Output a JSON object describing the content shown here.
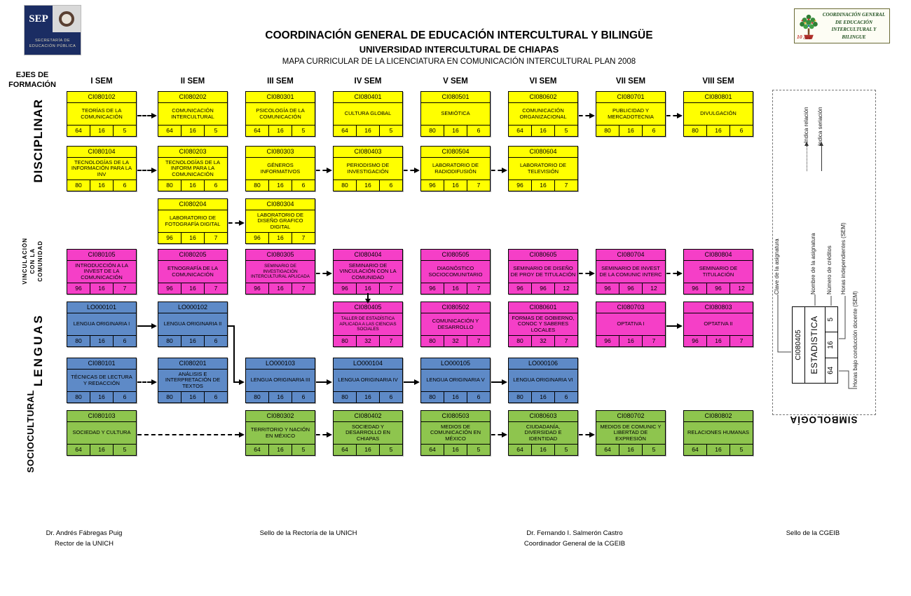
{
  "header": {
    "sep_logo": {
      "acronym": "SEP",
      "secretariat": "SECRETARÍA DE EDUCACIÓN PÚBLICA"
    },
    "title_line1": "COORDINACIÓN GENERAL DE EDUCACIÓN INTERCULTURAL Y BILINGÜE",
    "title_line2": "UNIVERSIDAD INTERCULTURAL DE CHIAPAS",
    "title_line3": "MAPA CURRICULAR DE LA LICENCIATURA EN COMUNICACIÓN INTERCULTURAL PLAN 2008",
    "cgeib_logo_text": "COORDINACIÓN GENERAL DE EDUCACIÓN INTERCULTURAL Y BILINGUE"
  },
  "rail": {
    "title_line1": "EJES DE",
    "title_line2": "FORMACIÓN",
    "disciplinar": "DISCIPLINAR",
    "vinculacion": [
      "VINCULACIÓN",
      "CON LA",
      "COMUNIDAD"
    ],
    "lenguas": "LENGUAS",
    "sociocultural": "SOCIOCULTURAL"
  },
  "semesters": [
    "I SEM",
    "II SEM",
    "III SEM",
    "IV SEM",
    "V SEM",
    "VI SEM",
    "VII SEM",
    "VIII SEM"
  ],
  "colors": {
    "disciplinar": "#FFFF00",
    "vinculacion": "#F53FC7",
    "lenguas": "#5E8AC7",
    "sociocultural": "#8EC54E"
  },
  "courses": [
    {
      "code": "CI080102",
      "name": "TEORÍAS DE LA COMUNICACIÓN",
      "h": "64",
      "hi": "16",
      "cr": "5",
      "sem": 1,
      "row": 0,
      "eje": "disciplinar"
    },
    {
      "code": "CI080202",
      "name": "COMUNICACIÓN INTERCULTURAL",
      "h": "64",
      "hi": "16",
      "cr": "5",
      "sem": 2,
      "row": 0,
      "eje": "disciplinar"
    },
    {
      "code": "CI080301",
      "name": "PSICOLOGÍA DE LA COMUNICACIÓN",
      "h": "64",
      "hi": "16",
      "cr": "5",
      "sem": 3,
      "row": 0,
      "eje": "disciplinar"
    },
    {
      "code": "CI080401",
      "name": "CULTURA GLOBAL",
      "h": "64",
      "hi": "16",
      "cr": "5",
      "sem": 4,
      "row": 0,
      "eje": "disciplinar"
    },
    {
      "code": "CI080501",
      "name": "SEMIÓTICA",
      "h": "80",
      "hi": "16",
      "cr": "6",
      "sem": 5,
      "row": 0,
      "eje": "disciplinar"
    },
    {
      "code": "CI080602",
      "name": "COMUNICACIÓN ORGANIZACIONAL",
      "h": "64",
      "hi": "16",
      "cr": "5",
      "sem": 6,
      "row": 0,
      "eje": "disciplinar"
    },
    {
      "code": "CI080701",
      "name": "PUBLICIDAD Y MERCADOTECNIA",
      "h": "80",
      "hi": "16",
      "cr": "6",
      "sem": 7,
      "row": 0,
      "eje": "disciplinar"
    },
    {
      "code": "CI080801",
      "name": "DIVULGACIÓN",
      "h": "80",
      "hi": "16",
      "cr": "6",
      "sem": 8,
      "row": 0,
      "eje": "disciplinar"
    },
    {
      "code": "CI080104",
      "name": "TECNOLOGÍAS DE LA INFORMACIÓN PARA LA INV",
      "h": "80",
      "hi": "16",
      "cr": "6",
      "sem": 1,
      "row": 1,
      "eje": "disciplinar"
    },
    {
      "code": "CI080203",
      "name": "TECNOLOGÍAS DE LA INFORM PARA LA COMUNICACIÓN",
      "h": "80",
      "hi": "16",
      "cr": "6",
      "sem": 2,
      "row": 1,
      "eje": "disciplinar"
    },
    {
      "code": "CI080303",
      "name": "GÉNEROS INFORMATIVOS",
      "h": "80",
      "hi": "16",
      "cr": "6",
      "sem": 3,
      "row": 1,
      "eje": "disciplinar"
    },
    {
      "code": "CI080403",
      "name": "PERIODISMO DE INVESTIGACIÓN",
      "h": "80",
      "hi": "16",
      "cr": "6",
      "sem": 4,
      "row": 1,
      "eje": "disciplinar"
    },
    {
      "code": "CI080504",
      "name": "LABORATORIO DE RADIODIFUSIÓN",
      "h": "96",
      "hi": "16",
      "cr": "7",
      "sem": 5,
      "row": 1,
      "eje": "disciplinar"
    },
    {
      "code": "CI080604",
      "name": "LABORATORIO DE TELEVISIÓN",
      "h": "96",
      "hi": "16",
      "cr": "7",
      "sem": 6,
      "row": 1,
      "eje": "disciplinar"
    },
    {
      "code": "CI080204",
      "name": "LABORATORIO DE FOTOGRAFÍA DIGITAL",
      "h": "96",
      "hi": "16",
      "cr": "7",
      "sem": 2,
      "row": 2,
      "eje": "disciplinar"
    },
    {
      "code": "CI080304",
      "name": "LABORATORIO DE DISEÑO GRAFICO DIGITAL",
      "h": "96",
      "hi": "16",
      "cr": "7",
      "sem": 3,
      "row": 2,
      "eje": "disciplinar"
    },
    {
      "code": "CI080105",
      "name": "INTRODUCCIÓN A LA INVEST DE LA COMUNICACIÓN",
      "h": "96",
      "hi": "16",
      "cr": "7",
      "sem": 1,
      "row": 3,
      "eje": "vinculacion"
    },
    {
      "code": "CI080205",
      "name": "ETNOGRAFÍA DE LA COMUNICACIÓN",
      "h": "96",
      "hi": "16",
      "cr": "7",
      "sem": 2,
      "row": 3,
      "eje": "vinculacion"
    },
    {
      "code": "CI080305",
      "name": "SEMINARIO DE INVESTIGACIÓN INTERCULTURAL APLICADA",
      "h": "96",
      "hi": "16",
      "cr": "7",
      "sem": 3,
      "row": 3,
      "eje": "vinculacion"
    },
    {
      "code": "CI080404",
      "name": "SEMINARIO DE VINCULACIÓN CON LA COMUNIDAD",
      "h": "96",
      "hi": "16",
      "cr": "7",
      "sem": 4,
      "row": 3,
      "eje": "vinculacion"
    },
    {
      "code": "CI080505",
      "name": "DIAGNÓSTICO SOCIOCOMUNITARIO",
      "h": "96",
      "hi": "16",
      "cr": "7",
      "sem": 5,
      "row": 3,
      "eje": "vinculacion"
    },
    {
      "code": "CI080605",
      "name": "SEMINARIO DE DISEÑO DE PROY DE TITULACIÓN",
      "h": "96",
      "hi": "96",
      "cr": "12",
      "sem": 6,
      "row": 3,
      "eje": "vinculacion"
    },
    {
      "code": "CI080704",
      "name": "SEMINARIO DE INVEST DE LA COMUNIC INTERC",
      "h": "96",
      "hi": "96",
      "cr": "12",
      "sem": 7,
      "row": 3,
      "eje": "vinculacion"
    },
    {
      "code": "CI080804",
      "name": "SEMINARIO DE TITULACIÓN",
      "h": "96",
      "hi": "96",
      "cr": "12",
      "sem": 8,
      "row": 3,
      "eje": "vinculacion"
    },
    {
      "code": "LO000101",
      "name": "LENGUA ORIGINARIA I",
      "h": "80",
      "hi": "16",
      "cr": "6",
      "sem": 1,
      "row": 4,
      "eje": "lenguas"
    },
    {
      "code": "LO000102",
      "name": "LENGUA ORIGINARIA II",
      "h": "80",
      "hi": "16",
      "cr": "6",
      "sem": 2,
      "row": 4,
      "eje": "lenguas"
    },
    {
      "code": "CI080405",
      "name": "TALLER DE ESTADÍSTICA APLICADA A LAS CIENCIAS SOCIALES",
      "h": "80",
      "hi": "32",
      "cr": "7",
      "sem": 4,
      "row": 4,
      "eje": "vinculacion"
    },
    {
      "code": "CI080502",
      "name": "COMUNICACIÓN Y DESARROLLO",
      "h": "80",
      "hi": "32",
      "cr": "7",
      "sem": 5,
      "row": 4,
      "eje": "vinculacion"
    },
    {
      "code": "CI080601",
      "name": "FORMAS DE GOBIERNO, CONOC Y SABERES LOCALES",
      "h": "80",
      "hi": "32",
      "cr": "7",
      "sem": 6,
      "row": 4,
      "eje": "vinculacion"
    },
    {
      "code": "CI080703",
      "name": "OPTATIVA I",
      "h": "96",
      "hi": "16",
      "cr": "7",
      "sem": 7,
      "row": 4,
      "eje": "vinculacion"
    },
    {
      "code": "CI080803",
      "name": "OPTATIVA II",
      "h": "96",
      "hi": "16",
      "cr": "7",
      "sem": 8,
      "row": 4,
      "eje": "vinculacion"
    },
    {
      "code": "CI080101",
      "name": "TÉCNICAS DE LECTURA Y REDACCIÓN",
      "h": "80",
      "hi": "16",
      "cr": "6",
      "sem": 1,
      "row": 5,
      "eje": "lenguas"
    },
    {
      "code": "CI080201",
      "name": "ANÁLISIS E INTERPRETACIÓN DE TEXTOS",
      "h": "80",
      "hi": "16",
      "cr": "6",
      "sem": 2,
      "row": 5,
      "eje": "lenguas"
    },
    {
      "code": "LO000103",
      "name": "LENGUA ORIGINARIA III",
      "h": "80",
      "hi": "16",
      "cr": "6",
      "sem": 3,
      "row": 5,
      "eje": "lenguas"
    },
    {
      "code": "LO000104",
      "name": "LENGUA ORIGINARIA IV",
      "h": "80",
      "hi": "16",
      "cr": "6",
      "sem": 4,
      "row": 5,
      "eje": "lenguas"
    },
    {
      "code": "LO000105",
      "name": "LENGUA ORIGINARIA V",
      "h": "80",
      "hi": "16",
      "cr": "6",
      "sem": 5,
      "row": 5,
      "eje": "lenguas"
    },
    {
      "code": "LO000106",
      "name": "LENGUA ORIGINARIA VI",
      "h": "80",
      "hi": "16",
      "cr": "6",
      "sem": 6,
      "row": 5,
      "eje": "lenguas"
    },
    {
      "code": "CI080103",
      "name": "SOCIEDAD Y CULTURA",
      "h": "64",
      "hi": "16",
      "cr": "5",
      "sem": 1,
      "row": 6,
      "eje": "sociocultural"
    },
    {
      "code": "CI080302",
      "name": "TERRITORIO Y NACIÓN EN MÉXICO",
      "h": "64",
      "hi": "16",
      "cr": "5",
      "sem": 3,
      "row": 6,
      "eje": "sociocultural"
    },
    {
      "code": "CI080402",
      "name": "SOCIEDAD Y DESARROLLO EN CHIAPAS",
      "h": "64",
      "hi": "16",
      "cr": "5",
      "sem": 4,
      "row": 6,
      "eje": "sociocultural"
    },
    {
      "code": "CI080503",
      "name": "MEDIOS DE COMUNICACIÓN EN MÉXICO",
      "h": "64",
      "hi": "16",
      "cr": "5",
      "sem": 5,
      "row": 6,
      "eje": "sociocultural"
    },
    {
      "code": "CI080603",
      "name": "CIUDADANÍA, DIVERSIDAD E IDENTIDAD",
      "h": "64",
      "hi": "16",
      "cr": "5",
      "sem": 6,
      "row": 6,
      "eje": "sociocultural"
    },
    {
      "code": "CI080702",
      "name": "MEDIOS DE COMUNIC Y LIBERTAD DE EXPRESIÓN",
      "h": "64",
      "hi": "16",
      "cr": "5",
      "sem": 7,
      "row": 6,
      "eje": "sociocultural"
    },
    {
      "code": "CI080802",
      "name": "RELACIONES HUMANAS",
      "h": "64",
      "hi": "16",
      "cr": "5",
      "sem": 8,
      "row": 6,
      "eje": "sociocultural"
    }
  ],
  "connections": [
    {
      "from": "CI080102",
      "to": "CI080202",
      "type": "relacion"
    },
    {
      "from": "CI080602",
      "to": "CI080701",
      "type": "relacion"
    },
    {
      "from": "CI080701",
      "to": "CI080801",
      "type": "relacion"
    },
    {
      "from": "CI080104",
      "to": "CI080203",
      "type": "relacion"
    },
    {
      "from": "CI080303",
      "to": "CI080403",
      "type": "relacion"
    },
    {
      "from": "CI080403",
      "to": "CI080504",
      "type": "relacion"
    },
    {
      "from": "CI080504",
      "to": "CI080604",
      "type": "relacion"
    },
    {
      "from": "CI080204",
      "to": "CI080304",
      "type": "relacion"
    },
    {
      "from": "CI080305",
      "to": "CI080404",
      "type": "relacion"
    },
    {
      "from": "CI080605",
      "to": "CI080704",
      "type": "relacion"
    },
    {
      "from": "CI080704",
      "to": "CI080804",
      "type": "relacion"
    },
    {
      "from": "CI080404",
      "to": "CI080405",
      "type": "seriacion",
      "route": "down"
    },
    {
      "from": "LO000101",
      "to": "LO000102",
      "type": "seriacion"
    },
    {
      "from": "LO000102",
      "to": "LO000103",
      "type": "seriacion",
      "route": "elbow"
    },
    {
      "from": "CI080703",
      "to": "CI080803",
      "type": "seriacion"
    },
    {
      "from": "CI080101",
      "to": "CI080201",
      "type": "relacion"
    },
    {
      "from": "LO000103",
      "to": "LO000104",
      "type": "seriacion"
    },
    {
      "from": "LO000104",
      "to": "LO000105",
      "type": "seriacion"
    },
    {
      "from": "LO000105",
      "to": "LO000106",
      "type": "seriacion"
    },
    {
      "from": "CI080103",
      "to": "CI080302",
      "type": "relacion"
    },
    {
      "from": "CI080302",
      "to": "CI080402",
      "type": "relacion"
    },
    {
      "from": "CI080503",
      "to": "CI080603",
      "type": "relacion"
    },
    {
      "from": "CI080603",
      "to": "CI080702",
      "type": "relacion"
    }
  ],
  "legend": {
    "title": "SIMBOLOGÍA",
    "relation_label": "Indica relación",
    "seriation_label": "Indica seriación",
    "example": {
      "code": "CI080405",
      "name": "ESTADISTICA",
      "h": "64",
      "hi": "16",
      "cr": "5"
    },
    "callouts": {
      "clave": "Clave de la asignatura",
      "nombre": "Nombre de la asignatura",
      "creditos": "Número de créditos",
      "horas_indep": "Horas independientes (SEM)",
      "horas_docente": "Horas bajo conducción docente (SEM)"
    }
  },
  "footer": {
    "col1_line1": "Dr. Andrés Fábregas Puig",
    "col1_line2": "Rector de la UNICH",
    "col2": "Sello de la Rectoría de la UNICH",
    "col3_line1": "Dr. Fernando I. Salmerón Castro",
    "col3_line2": "Coordinador General de la CGEIB",
    "col4": "Sello de la CGEIB"
  }
}
